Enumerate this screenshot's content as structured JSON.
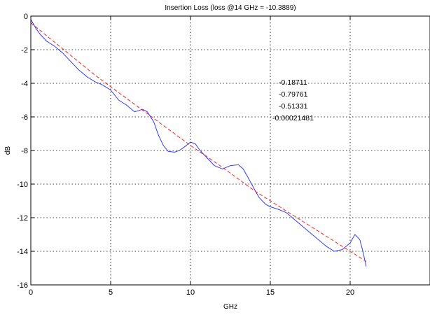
{
  "chart_data": {
    "type": "line",
    "title": "Insertion Loss  (loss @14 GHz = -10.3889)",
    "xlabel": "GHz",
    "ylabel": "dB",
    "xlim": [
      0,
      25
    ],
    "ylim": [
      -16,
      0
    ],
    "xticks": [
      0,
      5,
      10,
      15,
      20
    ],
    "yticks": [
      0,
      -2,
      -4,
      -6,
      -8,
      -10,
      -12,
      -14,
      -16
    ],
    "grid": true,
    "series": [
      {
        "color": "#2f3cff",
        "style": "solid",
        "x": [
          0,
          0.3,
          0.6,
          1,
          1.5,
          2,
          2.5,
          3,
          3.5,
          4,
          4.5,
          5,
          5.5,
          6,
          6.5,
          7,
          7.3,
          7.7,
          8,
          8.3,
          8.6,
          9,
          9.3,
          9.6,
          10,
          10.3,
          10.6,
          11,
          11.5,
          12,
          12.5,
          13,
          13.3,
          13.6,
          14,
          14.3,
          14.7,
          15,
          15.5,
          16,
          16.5,
          17,
          17.5,
          18,
          18.5,
          19,
          19.5,
          20,
          20.3,
          20.6,
          20.8,
          21
        ],
        "y": [
          -0.2,
          -0.7,
          -1.1,
          -1.5,
          -1.8,
          -2.2,
          -2.7,
          -3.2,
          -3.6,
          -3.9,
          -4.1,
          -4.4,
          -5,
          -5.3,
          -5.7,
          -5.55,
          -5.7,
          -6.3,
          -7.1,
          -7.7,
          -8.05,
          -8.1,
          -8.0,
          -7.8,
          -7.5,
          -7.6,
          -8.0,
          -8.4,
          -8.9,
          -9.1,
          -8.9,
          -8.85,
          -9.1,
          -9.6,
          -10.3,
          -10.8,
          -11.2,
          -11.35,
          -11.5,
          -11.7,
          -12.1,
          -12.5,
          -12.9,
          -13.3,
          -13.7,
          -14.0,
          -13.9,
          -13.5,
          -13.0,
          -13.3,
          -14.0,
          -14.9
        ]
      },
      {
        "color": "#ff2020",
        "style": "dashed",
        "x": [
          0,
          2,
          4,
          6,
          8,
          10,
          12,
          14,
          16,
          18,
          20,
          21
        ],
        "y": [
          -0.4,
          -1.95,
          -3.5,
          -4.9,
          -6.3,
          -7.7,
          -9.0,
          -10.39,
          -11.6,
          -12.8,
          -14.0,
          -14.6
        ]
      }
    ],
    "annotations": [
      "-0.18711",
      "-0.79761",
      "-0.51331",
      "-0.00021481"
    ]
  }
}
